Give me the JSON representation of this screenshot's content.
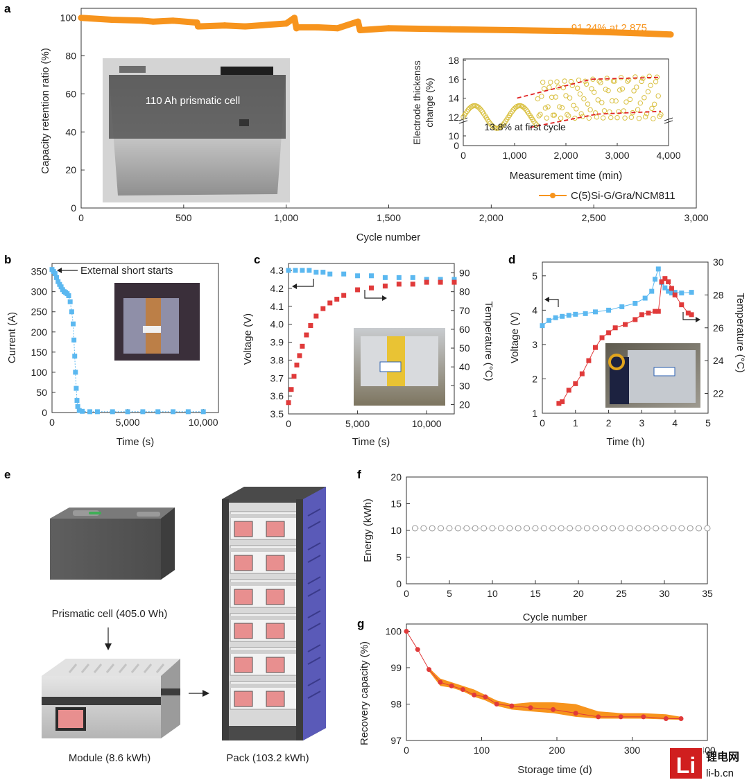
{
  "panel_letters": {
    "a": "a",
    "b": "b",
    "c": "c",
    "d": "d",
    "e": "e",
    "f": "f",
    "g": "g"
  },
  "colors": {
    "orange": "#F7941D",
    "blue": "#5BB8F0",
    "red": "#E03A3A",
    "gray": "#999999",
    "dashed": "#E02020",
    "yellow": "#D9C040"
  },
  "watermark": {
    "logo_text": "Li",
    "line1": "锂电网",
    "line2": "li-b.cn"
  },
  "chart_data": [
    {
      "panel": "a",
      "type": "line",
      "xlabel": "Cycle number",
      "ylabel": "Capacity retention ratio (%)",
      "xlim": [
        0,
        3000
      ],
      "ylim": [
        0,
        105
      ],
      "xticks": [
        0,
        500,
        1000,
        1500,
        2000,
        2500,
        3000
      ],
      "xtick_labels": [
        "0",
        "500",
        "1,000",
        "1,500",
        "2,000",
        "2,500",
        "3,000"
      ],
      "yticks": [
        0,
        20,
        40,
        60,
        80,
        100
      ],
      "series": [
        {
          "name": "C(5)Si-G/Gra/NCM811",
          "color": "#F7941D",
          "x": [
            0,
            150,
            300,
            350,
            450,
            565,
            570,
            700,
            800,
            1000,
            1040,
            1050,
            1060,
            1150,
            1250,
            1350,
            1360,
            1500,
            1800,
            2100,
            2400,
            2700,
            2875
          ],
          "y": [
            100,
            99,
            98.5,
            98,
            98.5,
            97.5,
            95.5,
            96,
            95.5,
            97,
            100,
            94.5,
            95,
            95,
            94.5,
            98,
            93.5,
            94.5,
            94,
            93.5,
            93,
            92,
            91.24
          ]
        }
      ],
      "annotation": "91.24% at 2,875",
      "photo_label": "110 Ah prismatic cell",
      "legend": "C(5)Si-G/Gra/NCM811",
      "inset": {
        "xlabel": "Measurement time (min)",
        "ylabel_line1": "Electrode thickenss",
        "ylabel_line2": "change (%)",
        "xlim": [
          0,
          4000
        ],
        "xticks": [
          0,
          1000,
          2000,
          3000,
          4000
        ],
        "xtick_labels": [
          "0",
          "1,000",
          "2,000",
          "3,000",
          "4,000"
        ],
        "yticks": [
          0,
          10,
          12,
          14,
          16,
          18
        ],
        "annotation": "13.8% at first cycle"
      }
    },
    {
      "panel": "b",
      "type": "scatter",
      "xlabel": "Time (s)",
      "ylabel": "Current (A)",
      "xlim": [
        0,
        11000
      ],
      "ylim": [
        0,
        370
      ],
      "xticks": [
        0,
        5000,
        10000
      ],
      "xtick_labels": [
        "0",
        "5,000",
        "10,000"
      ],
      "yticks": [
        0,
        50,
        100,
        150,
        200,
        250,
        300,
        350
      ],
      "series": [
        {
          "color": "#5BB8F0",
          "x": [
            0,
            100,
            200,
            300,
            400,
            500,
            600,
            700,
            800,
            900,
            1000,
            1100,
            1200,
            1300,
            1400,
            1450,
            1500,
            1550,
            1600,
            1650,
            1700,
            1800,
            2000,
            2500,
            3000,
            4000,
            5000,
            6000,
            7000,
            8000,
            9000,
            10000
          ],
          "y": [
            355,
            350,
            345,
            335,
            325,
            318,
            312,
            305,
            300,
            298,
            295,
            290,
            275,
            250,
            220,
            180,
            140,
            100,
            60,
            30,
            15,
            5,
            3,
            2,
            2,
            2,
            2,
            2,
            2,
            2,
            2,
            2
          ]
        }
      ],
      "annotation": "External short starts"
    },
    {
      "panel": "c",
      "type": "scatter",
      "xlabel": "Time (s)",
      "ylabel": "Voltage (V)",
      "y2label": "Temperature (°C)",
      "xlim": [
        0,
        12000
      ],
      "ylim": [
        3.5,
        4.3
      ],
      "y2lim": [
        15,
        95
      ],
      "xticks": [
        0,
        5000,
        10000
      ],
      "xtick_labels": [
        "0",
        "5,000",
        "10,000"
      ],
      "yticks": [
        3.5,
        3.6,
        3.7,
        3.8,
        3.9,
        4.0,
        4.1,
        4.2,
        4.3
      ],
      "y2ticks": [
        20,
        30,
        40,
        50,
        60,
        70,
        80,
        90
      ],
      "series": [
        {
          "name": "Voltage",
          "color": "#5BB8F0",
          "x": [
            0,
            500,
            1000,
            1500,
            2000,
            2500,
            3000,
            4000,
            5000,
            6000,
            7000,
            8000,
            9000,
            10000,
            11000,
            12000
          ],
          "y": [
            4.3,
            4.3,
            4.3,
            4.3,
            4.29,
            4.29,
            4.28,
            4.28,
            4.27,
            4.27,
            4.26,
            4.26,
            4.26,
            4.25,
            4.25,
            4.25
          ]
        },
        {
          "name": "Temperature",
          "color": "#E03A3A",
          "x": [
            0,
            200,
            400,
            600,
            800,
            1000,
            1300,
            1600,
            2000,
            2500,
            3000,
            3500,
            4000,
            5000,
            6000,
            7000,
            8000,
            9000,
            10000,
            11000,
            12000
          ],
          "y": [
            21,
            28,
            35,
            41,
            46,
            51,
            57,
            62,
            67,
            71,
            74,
            76,
            78,
            81,
            82,
            83,
            84,
            84,
            85,
            85,
            85
          ]
        }
      ]
    },
    {
      "panel": "d",
      "type": "scatter",
      "xlabel": "Time (h)",
      "ylabel": "Voltage (V)",
      "y2label": "Temperature (°C)",
      "xlim": [
        0,
        5
      ],
      "ylim": [
        1,
        5.4
      ],
      "y2lim": [
        20.8,
        30
      ],
      "xticks": [
        0,
        1,
        2,
        3,
        4,
        5
      ],
      "xtick_labels": [
        "0",
        "1",
        "2",
        "3",
        "4",
        "5"
      ],
      "yticks": [
        1,
        2,
        3,
        4,
        5
      ],
      "y2ticks": [
        22,
        24,
        26,
        28,
        30
      ],
      "series": [
        {
          "name": "Voltage",
          "color": "#5BB8F0",
          "x": [
            0,
            0.2,
            0.4,
            0.6,
            0.8,
            1.0,
            1.3,
            1.6,
            2.0,
            2.4,
            2.8,
            3.1,
            3.3,
            3.4,
            3.5,
            3.6,
            3.7,
            3.8,
            3.9,
            4.0,
            4.2,
            4.5
          ],
          "y": [
            3.55,
            3.7,
            3.78,
            3.82,
            3.85,
            3.88,
            3.9,
            3.95,
            4.0,
            4.1,
            4.2,
            4.35,
            4.55,
            4.9,
            5.2,
            4.8,
            4.65,
            4.55,
            4.5,
            4.52,
            4.5,
            4.52
          ]
        },
        {
          "name": "Temperature",
          "color": "#E03A3A",
          "x": [
            0.5,
            0.6,
            0.8,
            1.0,
            1.2,
            1.4,
            1.6,
            1.8,
            2.0,
            2.2,
            2.5,
            2.8,
            3.0,
            3.2,
            3.4,
            3.5,
            3.6,
            3.7,
            3.8,
            3.9,
            4.0,
            4.2,
            4.4,
            4.5
          ],
          "y": [
            21.4,
            21.5,
            22.2,
            22.6,
            23.2,
            24,
            24.8,
            25.4,
            25.7,
            26,
            26.2,
            26.5,
            26.8,
            26.9,
            27,
            27,
            28.8,
            29,
            28.8,
            28.4,
            28,
            27.4,
            26.9,
            26.8
          ]
        }
      ]
    },
    {
      "panel": "f",
      "type": "scatter",
      "xlabel": "Cycle number",
      "ylabel": "Energy (kWh)",
      "xlim": [
        0,
        35
      ],
      "ylim": [
        0,
        20
      ],
      "xticks": [
        0,
        5,
        10,
        15,
        20,
        25,
        30,
        35
      ],
      "yticks": [
        0,
        5,
        10,
        15,
        20
      ],
      "series": [
        {
          "color": "#999999",
          "x": [
            1,
            2,
            3,
            4,
            5,
            6,
            7,
            8,
            9,
            10,
            11,
            12,
            13,
            14,
            15,
            16,
            17,
            18,
            19,
            20,
            21,
            22,
            23,
            24,
            25,
            26,
            27,
            28,
            29,
            30,
            31,
            32,
            33,
            34,
            35
          ],
          "y": [
            10.4,
            10.4,
            10.4,
            10.4,
            10.4,
            10.4,
            10.4,
            10.4,
            10.4,
            10.4,
            10.4,
            10.4,
            10.4,
            10.4,
            10.4,
            10.4,
            10.4,
            10.4,
            10.4,
            10.4,
            10.4,
            10.4,
            10.4,
            10.4,
            10.4,
            10.4,
            10.4,
            10.4,
            10.4,
            10.4,
            10.4,
            10.4,
            10.4,
            10.4,
            10.4
          ]
        }
      ]
    },
    {
      "panel": "g",
      "type": "line",
      "xlabel": "Storage time (d)",
      "ylabel": "Recovery capacity (%)",
      "xlim": [
        0,
        400
      ],
      "ylim": [
        97,
        100.2
      ],
      "xticks": [
        0,
        100,
        200,
        300,
        400
      ],
      "xtick_labels": [
        "0",
        "100",
        "200",
        "300",
        "400"
      ],
      "yticks": [
        97,
        98,
        99,
        100
      ],
      "series": [
        {
          "color": "#E03A3A",
          "x": [
            0,
            15,
            30,
            45,
            60,
            75,
            90,
            105,
            120,
            140,
            165,
            195,
            225,
            255,
            285,
            315,
            345,
            365
          ],
          "y": [
            100,
            99.5,
            98.95,
            98.6,
            98.5,
            98.4,
            98.25,
            98.2,
            98.0,
            97.95,
            97.9,
            97.85,
            97.75,
            97.65,
            97.65,
            97.65,
            97.6,
            97.6
          ]
        }
      ],
      "band": {
        "color": "#F7941D",
        "x": [
          30,
          45,
          60,
          75,
          90,
          105,
          120,
          140,
          165,
          195,
          225,
          255,
          285,
          315,
          345,
          365
        ],
        "upper": [
          99.0,
          98.7,
          98.6,
          98.5,
          98.4,
          98.25,
          98.1,
          98.0,
          98.05,
          98.05,
          98.0,
          97.8,
          97.75,
          97.75,
          97.72,
          97.65
        ],
        "lower": [
          98.9,
          98.5,
          98.45,
          98.35,
          98.2,
          98.1,
          97.95,
          97.85,
          97.8,
          97.75,
          97.65,
          97.6,
          97.6,
          97.6,
          97.58,
          97.57
        ]
      }
    }
  ],
  "panel_e": {
    "cell_label": "Prismatic cell (405.0 Wh)",
    "module_label": "Module (8.6 kWh)",
    "pack_label": "Pack (103.2 kWh)"
  }
}
